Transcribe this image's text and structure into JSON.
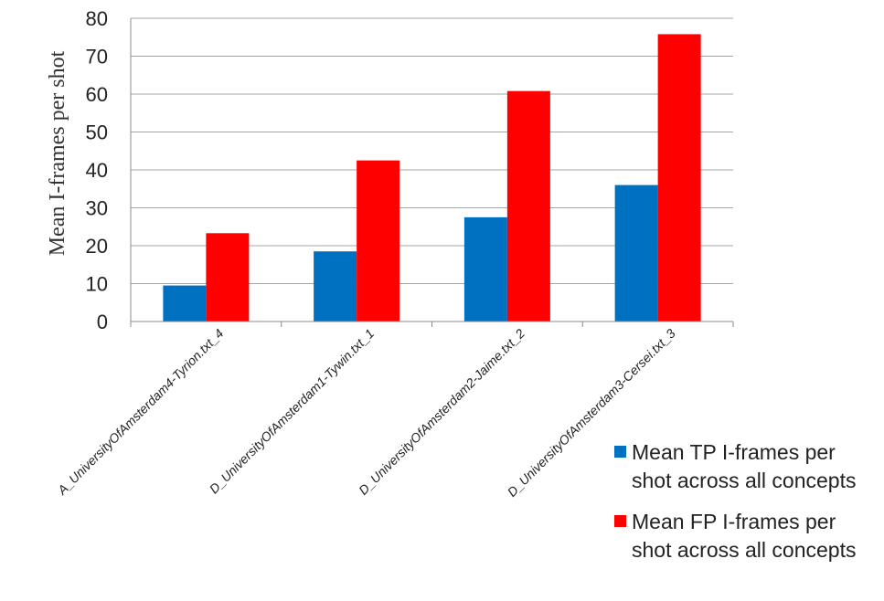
{
  "chart_data": {
    "type": "bar",
    "title": "",
    "xlabel": "",
    "ylabel": "Mean I-frames per shot",
    "ylim": [
      0,
      80
    ],
    "yticks": [
      "0",
      "10",
      "20",
      "30",
      "40",
      "50",
      "60",
      "70",
      "80"
    ],
    "grid": true,
    "legend_position": "bottom-right",
    "categories": [
      "A_UniversityOfAmsterdam4-Tyrion.txt_4",
      "D_UniversityOfAmsterdam1-Tywin.txt_1",
      "D_UniversityOfAmsterdam2-Jaime.txt_2",
      "D_UniversityOfAmsterdam3-Cersei.txt_3"
    ],
    "series": [
      {
        "name": "Mean TP I-frames per shot across all concepts",
        "color": "#0070C0",
        "values": [
          9.5,
          18.5,
          27.5,
          36
        ]
      },
      {
        "name": "Mean FP I-frames per shot across all concepts",
        "color": "#FF0000",
        "values": [
          23.3,
          42.5,
          60.8,
          75.8
        ]
      }
    ]
  }
}
